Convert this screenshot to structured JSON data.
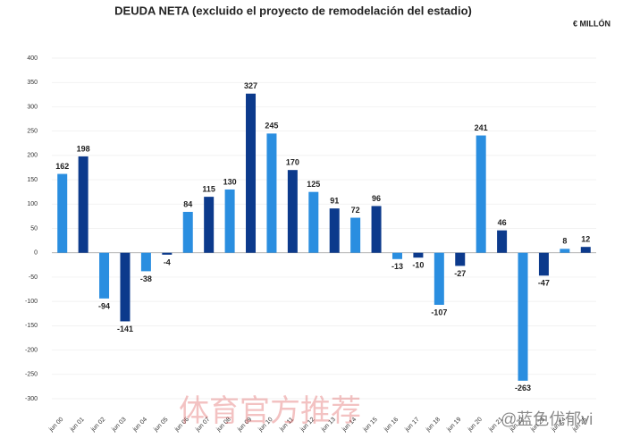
{
  "chart_data": {
    "type": "bar",
    "title": "DEUDA NETA (excluido el proyecto de remodelación del estadio)",
    "unit": "€ MILLÓN",
    "categories": [
      "jun 00",
      "jun 01",
      "jun 02",
      "jun 03",
      "jun 04",
      "jun 05",
      "jun 06",
      "jun 07",
      "jun 08",
      "jun 09",
      "jun 10",
      "jun 11",
      "jun 12",
      "jun 13",
      "jun 14",
      "jun 15",
      "jun 16",
      "jun 17",
      "jun 18",
      "jun 19",
      "jun 20",
      "jun 21",
      "jun 22",
      "jun 23",
      "jun 24",
      "jun 25"
    ],
    "values": [
      162,
      198,
      -94,
      -141,
      -38,
      -4,
      84,
      115,
      130,
      327,
      245,
      170,
      125,
      91,
      72,
      96,
      -13,
      -10,
      -107,
      -27,
      241,
      46,
      -263,
      -47,
      8,
      12
    ],
    "colors": [
      "#2a8ee0",
      "#0c3a8c",
      "#2a8ee0",
      "#0c3a8c",
      "#2a8ee0",
      "#0c3a8c",
      "#2a8ee0",
      "#0c3a8c",
      "#2a8ee0",
      "#0c3a8c",
      "#2a8ee0",
      "#0c3a8c",
      "#2a8ee0",
      "#0c3a8c",
      "#2a8ee0",
      "#0c3a8c",
      "#2a8ee0",
      "#0c3a8c",
      "#2a8ee0",
      "#0c3a8c",
      "#2a8ee0",
      "#0c3a8c",
      "#2a8ee0",
      "#0c3a8c",
      "#2a8ee0",
      "#0c3a8c"
    ],
    "ylim": [
      -300,
      400
    ],
    "yticks": [
      -300,
      -250,
      -200,
      -150,
      -100,
      -50,
      0,
      50,
      100,
      150,
      200,
      250,
      300,
      350,
      400
    ],
    "grid": true
  },
  "watermarks": [
    "体育官方推荐",
    "@蓝色优郁vi"
  ]
}
